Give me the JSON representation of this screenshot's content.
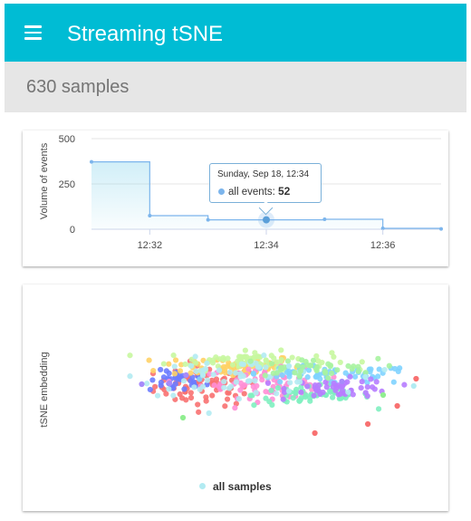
{
  "appbar": {
    "title": "Streaming tSNE",
    "menu_icon": "hamburger-menu-icon",
    "color": "#00bcd4"
  },
  "subheader": {
    "sample_count": "630 samples"
  },
  "volume_chart": {
    "tooltip": {
      "header": "Sunday, Sep 18, 12:34",
      "series": "all events",
      "separator": ": ",
      "value": "52"
    },
    "chart_data": {
      "type": "area",
      "title": "",
      "xlabel": "",
      "ylabel": "Volume of events",
      "x_ticks": [
        "12:32",
        "12:34",
        "12:36"
      ],
      "y_ticks": [
        "0",
        "250",
        "500"
      ],
      "ylim": [
        0,
        500
      ],
      "grid": true,
      "step": true,
      "series": [
        {
          "name": "all events",
          "color": "#7cb5ec",
          "points": [
            {
              "x": "12:31",
              "y": 372
            },
            {
              "x": "12:32",
              "y": 75
            },
            {
              "x": "12:33",
              "y": 52
            },
            {
              "x": "12:34",
              "y": 52
            },
            {
              "x": "12:35",
              "y": 55
            },
            {
              "x": "12:36",
              "y": 5
            },
            {
              "x": "12:37",
              "y": 2
            }
          ]
        }
      ]
    }
  },
  "tsne_chart": {
    "legend": {
      "label": "all samples",
      "color": "#b2ebf2"
    },
    "chart_data": {
      "type": "scatter",
      "title": "",
      "xlabel": "",
      "ylabel": "tSNE embedding",
      "legend_position": "bottom-center",
      "grid": false,
      "series": [
        {
          "name": "all samples",
          "points": [
            {
              "x": -1.45,
              "y": 0.03,
              "c": "#a78bfa"
            },
            {
              "x": -1.12,
              "y": 0.12,
              "c": "#a78bfa"
            },
            {
              "x": 4.85,
              "y": 0.2,
              "c": "#c77dff"
            },
            {
              "x": 3.45,
              "y": 0.0,
              "c": "#b2ebf2"
            },
            {
              "x": -0.5,
              "y": -0.35,
              "c": "#90ee90"
            },
            {
              "x": 0.62,
              "y": -0.52,
              "c": "#f87171"
            },
            {
              "x": 1.07,
              "y": -0.42,
              "c": "#f87171"
            },
            {
              "x": 1.32,
              "y": -0.22,
              "c": "#f87171"
            },
            {
              "x": 1.48,
              "y": 0.08,
              "c": "#f87171"
            },
            {
              "x": 0.85,
              "y": 0.05,
              "c": "#a78bfa"
            },
            {
              "x": -0.85,
              "y": 0.02,
              "c": "#a78bfa"
            },
            {
              "x": 1.2,
              "y": -0.1,
              "c": "#90ee90"
            },
            {
              "x": 0.4,
              "y": 0.22,
              "c": "#b2ebf2"
            },
            {
              "x": 1.05,
              "y": 0.1,
              "c": "#b2ebf2"
            }
          ],
          "clusters": [
            {
              "cx": -0.3,
              "cy": 0.0,
              "sx": 0.22,
              "sy": 0.11,
              "n": 75,
              "c": "#f87171"
            },
            {
              "cx": -0.55,
              "cy": 0.05,
              "sx": 0.12,
              "sy": 0.06,
              "n": 35,
              "c": "#6b7cff"
            },
            {
              "cx": -0.1,
              "cy": 0.22,
              "sx": 0.3,
              "sy": 0.06,
              "n": 60,
              "c": "#ffd166"
            },
            {
              "cx": 0.05,
              "cy": 0.28,
              "sx": 0.35,
              "sy": 0.05,
              "n": 70,
              "c": "#c8f7a0"
            },
            {
              "cx": 0.25,
              "cy": 0.03,
              "sx": 0.3,
              "sy": 0.08,
              "n": 70,
              "c": "#ff8fd6"
            },
            {
              "cx": 0.6,
              "cy": -0.1,
              "sx": 0.25,
              "sy": 0.06,
              "n": 60,
              "c": "#7ff0c0"
            },
            {
              "cx": 0.7,
              "cy": 0.12,
              "sx": 0.4,
              "sy": 0.05,
              "n": 65,
              "c": "#7fd3ff"
            },
            {
              "cx": 0.85,
              "cy": -0.02,
              "sx": 0.22,
              "sy": 0.05,
              "n": 50,
              "c": "#b77dff"
            },
            {
              "cx": -0.05,
              "cy": 0.1,
              "sx": 0.4,
              "sy": 0.1,
              "n": 60,
              "c": "#b2ebf2"
            },
            {
              "cx": 0.55,
              "cy": 0.2,
              "sx": 0.3,
              "sy": 0.05,
              "n": 40,
              "c": "#a7f3a0"
            }
          ]
        }
      ]
    }
  }
}
